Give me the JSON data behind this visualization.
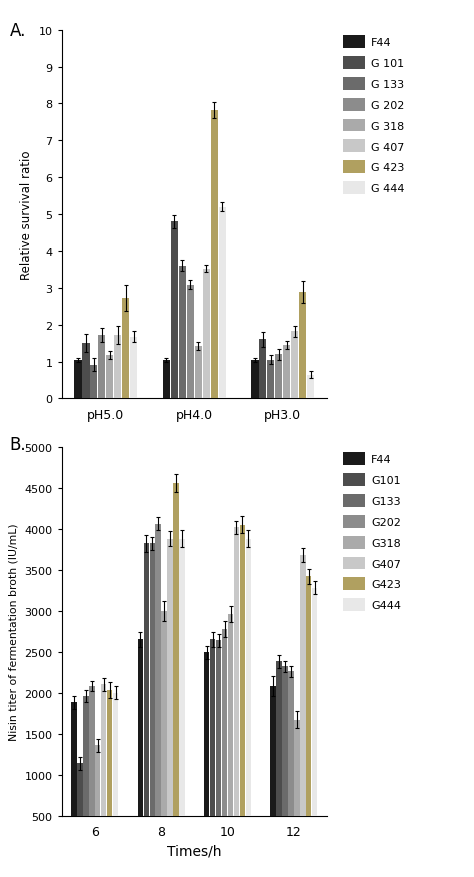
{
  "panel_A": {
    "ylabel": "Relative survival ratio",
    "groups": [
      "pH5.0",
      "pH4.0",
      "pH3.0"
    ],
    "strains_A": [
      "F44",
      "G 101",
      "G 133",
      "G 202",
      "G 318",
      "G 407",
      "G 423",
      "G 444"
    ],
    "colors": [
      "#1a1a1a",
      "#4d4d4d",
      "#6b6b6b",
      "#8c8c8c",
      "#aaaaaa",
      "#c8c8c8",
      "#b0a060",
      "#e8e8e8"
    ],
    "values": [
      [
        1.05,
        1.05,
        1.05
      ],
      [
        1.5,
        4.8,
        1.6
      ],
      [
        0.92,
        3.6,
        1.05
      ],
      [
        1.72,
        3.08,
        1.2
      ],
      [
        1.18,
        1.42,
        1.45
      ],
      [
        1.72,
        3.52,
        1.82
      ],
      [
        2.72,
        7.82,
        2.88
      ],
      [
        1.68,
        5.2,
        0.65
      ]
    ],
    "errors": [
      [
        0.05,
        0.05,
        0.05
      ],
      [
        0.25,
        0.18,
        0.2
      ],
      [
        0.18,
        0.15,
        0.12
      ],
      [
        0.2,
        0.12,
        0.15
      ],
      [
        0.1,
        0.1,
        0.12
      ],
      [
        0.25,
        0.1,
        0.15
      ],
      [
        0.35,
        0.22,
        0.3
      ],
      [
        0.15,
        0.12,
        0.1
      ]
    ],
    "ylim": [
      0,
      10
    ],
    "yticks": [
      0,
      1,
      2,
      3,
      4,
      5,
      6,
      7,
      8,
      9,
      10
    ]
  },
  "panel_B": {
    "ylabel": "Nisin titer of fermentation broth (IU/mL)",
    "xlabel": "Times/h",
    "groups": [
      "6",
      "8",
      "10",
      "12"
    ],
    "strains_B": [
      "F44",
      "G101",
      "G133",
      "G202",
      "G318",
      "G407",
      "G423",
      "G444"
    ],
    "colors": [
      "#1a1a1a",
      "#4d4d4d",
      "#6b6b6b",
      "#8c8c8c",
      "#aaaaaa",
      "#c8c8c8",
      "#b0a060",
      "#e8e8e8"
    ],
    "values": [
      [
        1880,
        2650,
        2490,
        2080
      ],
      [
        1140,
        3820,
        2650,
        2380
      ],
      [
        1960,
        3820,
        2640,
        2320
      ],
      [
        2080,
        4060,
        2780,
        2260
      ],
      [
        1360,
        3000,
        2960,
        1670
      ],
      [
        2100,
        3880,
        4020,
        3680
      ],
      [
        2030,
        4560,
        4050,
        3420
      ],
      [
        2000,
        3880,
        3880,
        3280
      ]
    ],
    "errors": [
      [
        80,
        90,
        80,
        120
      ],
      [
        80,
        100,
        90,
        80
      ],
      [
        70,
        80,
        80,
        70
      ],
      [
        60,
        80,
        100,
        70
      ],
      [
        80,
        120,
        100,
        100
      ],
      [
        80,
        90,
        80,
        90
      ],
      [
        100,
        110,
        100,
        90
      ],
      [
        80,
        100,
        100,
        80
      ]
    ],
    "ylim": [
      500,
      5000
    ],
    "yticks": [
      500,
      1000,
      1500,
      2000,
      2500,
      3000,
      3500,
      4000,
      4500,
      5000
    ]
  }
}
